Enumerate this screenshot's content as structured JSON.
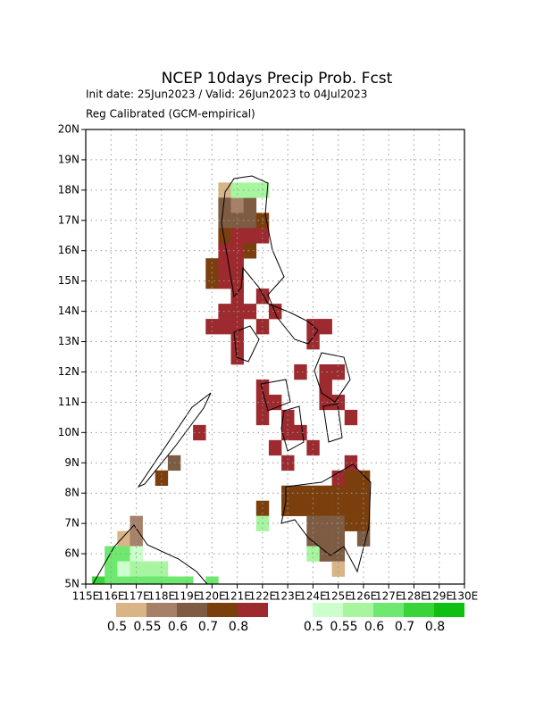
{
  "chart_data": {
    "type": "grid-map",
    "title": "NCEP 10days Precip Prob. Fcst",
    "subtitle": "Init date: 25Jun2023 / Valid: 26Jun2023 to 04Jul2023",
    "note": "Reg Calibrated (GCM-empirical)",
    "xlim": [
      115,
      130
    ],
    "ylim": [
      5,
      20
    ],
    "xticks": [
      {
        "value": 115,
        "label": "115E"
      },
      {
        "value": 116,
        "label": "116E"
      },
      {
        "value": 117,
        "label": "117E"
      },
      {
        "value": 118,
        "label": "118E"
      },
      {
        "value": 119,
        "label": "119E"
      },
      {
        "value": 120,
        "label": "120E"
      },
      {
        "value": 121,
        "label": "121E"
      },
      {
        "value": 122,
        "label": "122E"
      },
      {
        "value": 123,
        "label": "123E"
      },
      {
        "value": 124,
        "label": "124E"
      },
      {
        "value": 125,
        "label": "125E"
      },
      {
        "value": 126,
        "label": "126E"
      },
      {
        "value": 127,
        "label": "127E"
      },
      {
        "value": 128,
        "label": "128E"
      },
      {
        "value": 129,
        "label": "129E"
      },
      {
        "value": 130,
        "label": "130E"
      }
    ],
    "yticks": [
      {
        "value": 5,
        "label": "5N"
      },
      {
        "value": 6,
        "label": "6N"
      },
      {
        "value": 7,
        "label": "7N"
      },
      {
        "value": 8,
        "label": "8N"
      },
      {
        "value": 9,
        "label": "9N"
      },
      {
        "value": 10,
        "label": "10N"
      },
      {
        "value": 11,
        "label": "11N"
      },
      {
        "value": 12,
        "label": "12N"
      },
      {
        "value": 13,
        "label": "13N"
      },
      {
        "value": 14,
        "label": "14N"
      },
      {
        "value": 15,
        "label": "15N"
      },
      {
        "value": 16,
        "label": "16N"
      },
      {
        "value": 17,
        "label": "17N"
      },
      {
        "value": 18,
        "label": "18N"
      },
      {
        "value": 19,
        "label": "19N"
      },
      {
        "value": 20,
        "label": "20N"
      }
    ],
    "grid": true,
    "cell_size": 0.5,
    "series": [
      {
        "colors": [
          "#d8b487",
          "#a7806a",
          "#7d5c43",
          "#7b3f0e",
          "#9c2a2e"
        ],
        "levels": [
          0.5,
          0.55,
          0.6,
          0.7,
          0.8
        ],
        "lon": [
          120.5,
          120.5,
          121,
          121.5,
          120.5,
          121,
          121.5,
          122,
          120.5,
          121,
          121.5,
          122,
          120.5,
          121,
          121.5,
          120,
          120.5,
          121,
          120,
          120.5,
          121,
          121,
          122,
          120.5,
          121,
          121.5,
          122.5,
          120,
          120.5,
          121,
          122,
          124,
          124.5,
          121,
          124,
          121,
          123.5,
          124.5,
          125,
          122,
          124.5,
          122,
          122.5,
          124.5,
          125,
          122,
          123,
          125.5,
          119.5,
          123,
          123.5,
          122.5,
          124,
          118.5,
          123,
          125.5,
          118,
          125,
          125.5,
          126,
          123,
          123.5,
          124,
          124.5,
          125,
          125.5,
          126,
          122,
          123,
          123.5,
          124,
          124.5,
          125,
          125.5,
          126,
          117,
          124,
          124.5,
          125,
          125.5,
          126,
          116.5,
          117,
          124,
          124.5,
          125,
          126,
          124.5,
          125,
          125
        ],
        "lat": [
          18,
          17.5,
          17.5,
          17.5,
          17,
          17,
          17,
          17,
          16.5,
          16.5,
          16.5,
          16.5,
          16,
          16,
          16,
          15.5,
          15.5,
          15.5,
          15,
          15,
          15,
          14.5,
          14.5,
          14,
          14,
          14,
          14,
          13.5,
          13.5,
          13.5,
          13.5,
          13.5,
          13.5,
          13,
          13,
          12.5,
          12,
          12,
          12,
          11.5,
          11.5,
          11,
          11,
          11,
          11,
          10.5,
          10.5,
          10.5,
          10,
          10,
          10,
          9.5,
          9.5,
          9,
          9,
          9,
          8.5,
          8.5,
          8.5,
          8.5,
          8,
          8,
          8,
          8,
          8,
          8,
          8,
          7.5,
          7.5,
          7.5,
          7.5,
          7.5,
          7.5,
          7.5,
          7.5,
          7,
          7,
          7,
          7,
          7,
          7,
          6.5,
          6.5,
          6.5,
          6.5,
          6.5,
          6.5,
          6,
          6,
          5.5
        ],
        "values": [
          0.5,
          0.6,
          0.55,
          0.6,
          0.6,
          0.6,
          0.6,
          0.7,
          0.7,
          0.8,
          0.8,
          0.8,
          0.8,
          0.8,
          0.7,
          0.7,
          0.8,
          0.8,
          0.7,
          0.8,
          0.8,
          0.8,
          0.8,
          0.8,
          0.8,
          0.8,
          0.8,
          0.8,
          0.8,
          0.8,
          0.8,
          0.8,
          0.8,
          0.8,
          0.8,
          0.8,
          0.8,
          0.8,
          0.8,
          0.8,
          0.8,
          0.8,
          0.8,
          0.8,
          0.8,
          0.8,
          0.8,
          0.8,
          0.8,
          0.8,
          0.8,
          0.8,
          0.8,
          0.6,
          0.8,
          0.8,
          0.7,
          0.8,
          0.7,
          0.7,
          0.7,
          0.7,
          0.7,
          0.7,
          0.7,
          0.7,
          0.7,
          0.7,
          0.7,
          0.7,
          0.7,
          0.7,
          0.7,
          0.7,
          0.7,
          0.55,
          0.6,
          0.6,
          0.6,
          0.7,
          0.7,
          0.5,
          0.55,
          0.6,
          0.6,
          0.6,
          0.6,
          0.6,
          0.6,
          0.5
        ]
      },
      {
        "colors": [
          "#ccffcc",
          "#a8f5a0",
          "#6ee86e",
          "#38d438",
          "#10c010"
        ],
        "levels": [
          0.5,
          0.55,
          0.6,
          0.7,
          0.8
        ],
        "lon": [
          121,
          121.5,
          122,
          122,
          116,
          116.5,
          117,
          124,
          116,
          116.5,
          117,
          117.5,
          118,
          115.5,
          116,
          116.5,
          117,
          117.5,
          118,
          118.5,
          119,
          120
        ],
        "lat": [
          18,
          18,
          18,
          7,
          6,
          6,
          6,
          6,
          5.5,
          5.5,
          5.5,
          5.5,
          5.5,
          5,
          5,
          5,
          5,
          5,
          5,
          5,
          5,
          5
        ],
        "values": [
          0.55,
          0.55,
          0.55,
          0.55,
          0.6,
          0.6,
          0.5,
          0.55,
          0.6,
          0.5,
          0.55,
          0.55,
          0.55,
          0.7,
          0.6,
          0.6,
          0.6,
          0.6,
          0.6,
          0.6,
          0.6,
          0.6
        ]
      }
    ]
  }
}
